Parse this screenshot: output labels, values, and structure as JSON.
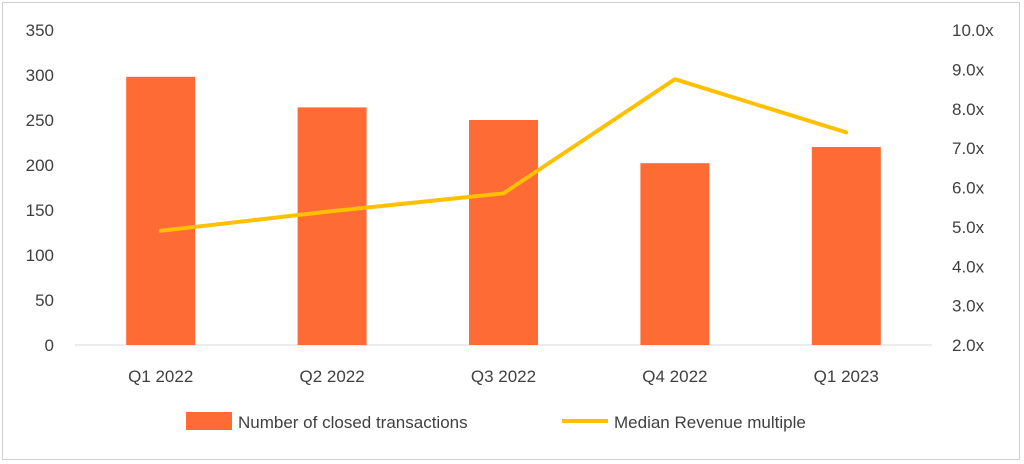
{
  "chart_data": {
    "type": "bar",
    "categories": [
      "Q1 2022",
      "Q2 2022",
      "Q3 2022",
      "Q4 2022",
      "Q1 2023"
    ],
    "series": [
      {
        "name": "Number of closed transactions",
        "type": "bar",
        "axis": "left",
        "color": "#FF6B35",
        "values": [
          298,
          264,
          250,
          202,
          220
        ]
      },
      {
        "name": "Median Revenue multiple",
        "type": "line",
        "axis": "right",
        "color": "#FFC000",
        "values": [
          4.9,
          5.4,
          5.85,
          8.75,
          7.4
        ]
      }
    ],
    "y_left": {
      "ylim": [
        0,
        350
      ],
      "ticks": [
        0,
        50,
        100,
        150,
        200,
        250,
        300,
        350
      ],
      "tick_labels": [
        "0",
        "50",
        "100",
        "150",
        "200",
        "250",
        "300",
        "350"
      ]
    },
    "y_right": {
      "ylim": [
        2.0,
        10.0
      ],
      "ticks": [
        2,
        3,
        4,
        5,
        6,
        7,
        8,
        9,
        10
      ],
      "tick_labels": [
        "2.0x",
        "3.0x",
        "4.0x",
        "5.0x",
        "6.0x",
        "7.0x",
        "8.0x",
        "9.0x",
        "10.0x"
      ]
    },
    "grid": false,
    "legend": "bottom"
  }
}
